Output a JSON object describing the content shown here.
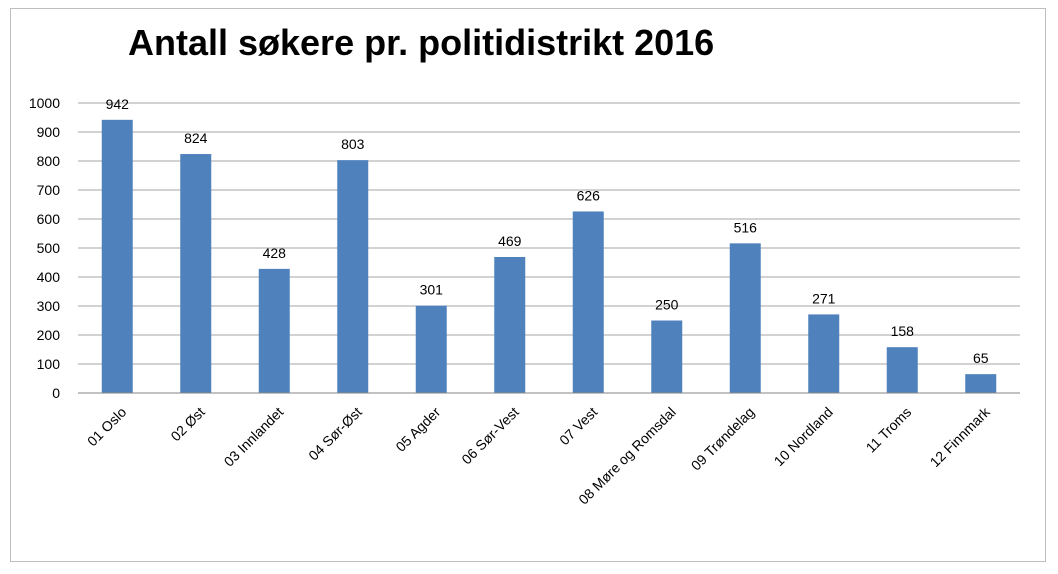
{
  "chart_data": {
    "type": "bar",
    "title": "Antall søkere pr. politidistrikt 2016",
    "categories": [
      "01 Oslo",
      "02 Øst",
      "03 Innlandet",
      "04 Sør-Øst",
      "05 Agder",
      "06 Sør-Vest",
      "07 Vest",
      "08 Møre og Romsdal",
      "09 Trøndelag",
      "10 Nordland",
      "11 Troms",
      "12 Finnmark"
    ],
    "values": [
      942,
      824,
      428,
      803,
      301,
      469,
      626,
      250,
      516,
      271,
      158,
      65
    ],
    "ylim": [
      0,
      1000
    ],
    "yticks": [
      0,
      100,
      200,
      300,
      400,
      500,
      600,
      700,
      800,
      900,
      1000
    ],
    "grid": true,
    "legend": "none",
    "bar_color": "#4f81bd",
    "data_labels": true
  }
}
